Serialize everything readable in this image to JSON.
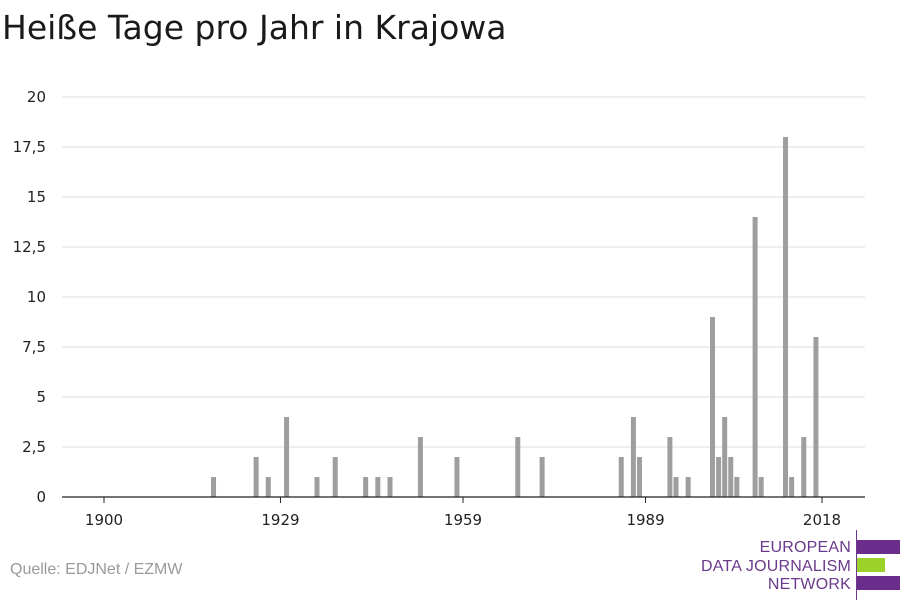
{
  "title": "Heiße Tage pro Jahr in Krajowa",
  "source": "Quelle: EDJNet / EZMW",
  "logo": {
    "lines": [
      "EUROPEAN",
      "DATA JOURNALISM",
      "NETWORK"
    ],
    "colors": {
      "purple": "#6b2d8c",
      "green": "#9bd22a"
    }
  },
  "chart_data": {
    "type": "bar",
    "title": "Heiße Tage pro Jahr in Krajowa",
    "xlabel": "",
    "ylabel": "",
    "xlim": [
      1900,
      2019
    ],
    "ylim": [
      0,
      20
    ],
    "x_ticks": [
      "1900",
      "1929",
      "1959",
      "1989",
      "2018"
    ],
    "y_ticks": [
      "0",
      "2,5",
      "5",
      "7,5",
      "10",
      "12,5",
      "15",
      "17,5",
      "20"
    ],
    "grid": true,
    "bar_color": "#9e9e9e",
    "x": [
      1918,
      1925,
      1927,
      1930,
      1935,
      1938,
      1943,
      1945,
      1947,
      1952,
      1958,
      1968,
      1972,
      1985,
      1987,
      1988,
      1993,
      1994,
      1996,
      2000,
      2001,
      2002,
      2003,
      2004,
      2007,
      2008,
      2012,
      2013,
      2015,
      2017
    ],
    "values": [
      1,
      2,
      1,
      4,
      1,
      2,
      1,
      1,
      1,
      3,
      2,
      3,
      2,
      2,
      4,
      2,
      3,
      1,
      1,
      9,
      2,
      4,
      2,
      1,
      14,
      1,
      18,
      1,
      3,
      8
    ]
  }
}
